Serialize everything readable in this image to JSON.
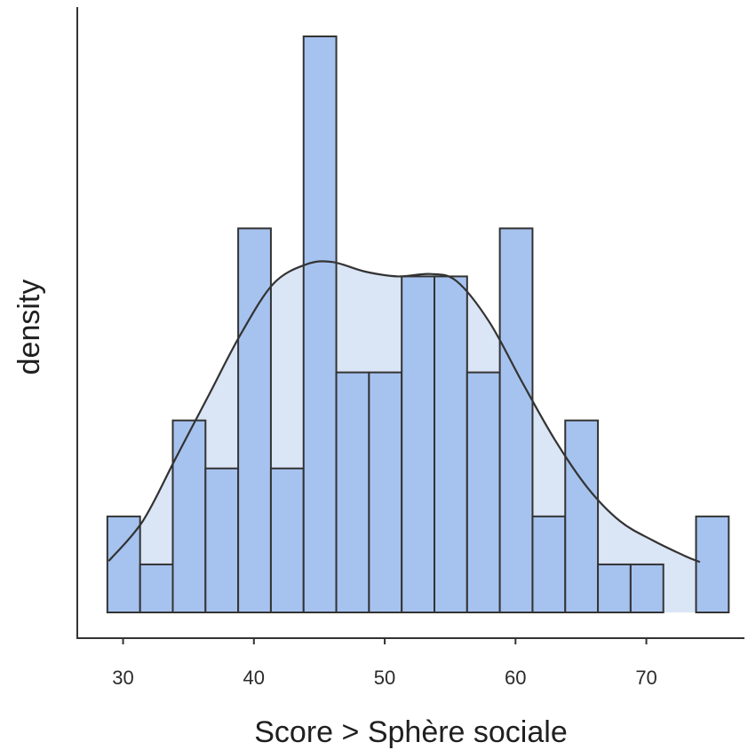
{
  "chart_data": {
    "type": "histogram",
    "xlabel": "Score > Sphère sociale",
    "ylabel": "density",
    "x_ticks": [
      30,
      40,
      50,
      60,
      70
    ],
    "xlim": [
      26.5,
      77.5
    ],
    "ylim": [
      0,
      12.5
    ],
    "y_tick_labels_shown": false,
    "bin_edges": [
      28.8,
      31.3,
      33.8,
      36.3,
      38.8,
      41.3,
      43.8,
      46.3,
      48.8,
      51.3,
      53.8,
      56.3,
      58.8,
      61.3,
      63.8,
      66.3,
      68.8,
      71.3,
      73.8,
      76.3
    ],
    "counts": [
      2,
      1,
      4,
      3,
      8,
      3,
      12,
      5,
      5,
      7,
      7,
      5,
      8,
      2,
      4,
      1,
      1,
      0,
      2
    ],
    "density_curve": {
      "x": [
        28.9,
        31.5,
        34,
        36.5,
        39,
        41.5,
        44,
        46,
        48.5,
        51,
        53.5,
        55.5,
        58,
        60.5,
        63,
        65.5,
        68,
        70.5,
        73,
        74.1
      ],
      "y": [
        1.07,
        1.9,
        3.2,
        4.5,
        5.8,
        6.85,
        7.25,
        7.3,
        7.1,
        7.0,
        7.05,
        6.9,
        6.05,
        4.8,
        3.6,
        2.6,
        1.9,
        1.5,
        1.17,
        1.05
      ]
    },
    "colors": {
      "bar_fill": "#a6c3ef",
      "bar_stroke": "#333333",
      "density_fill": "#dae5f5",
      "curve": "#333333",
      "axis": "#333333"
    }
  }
}
